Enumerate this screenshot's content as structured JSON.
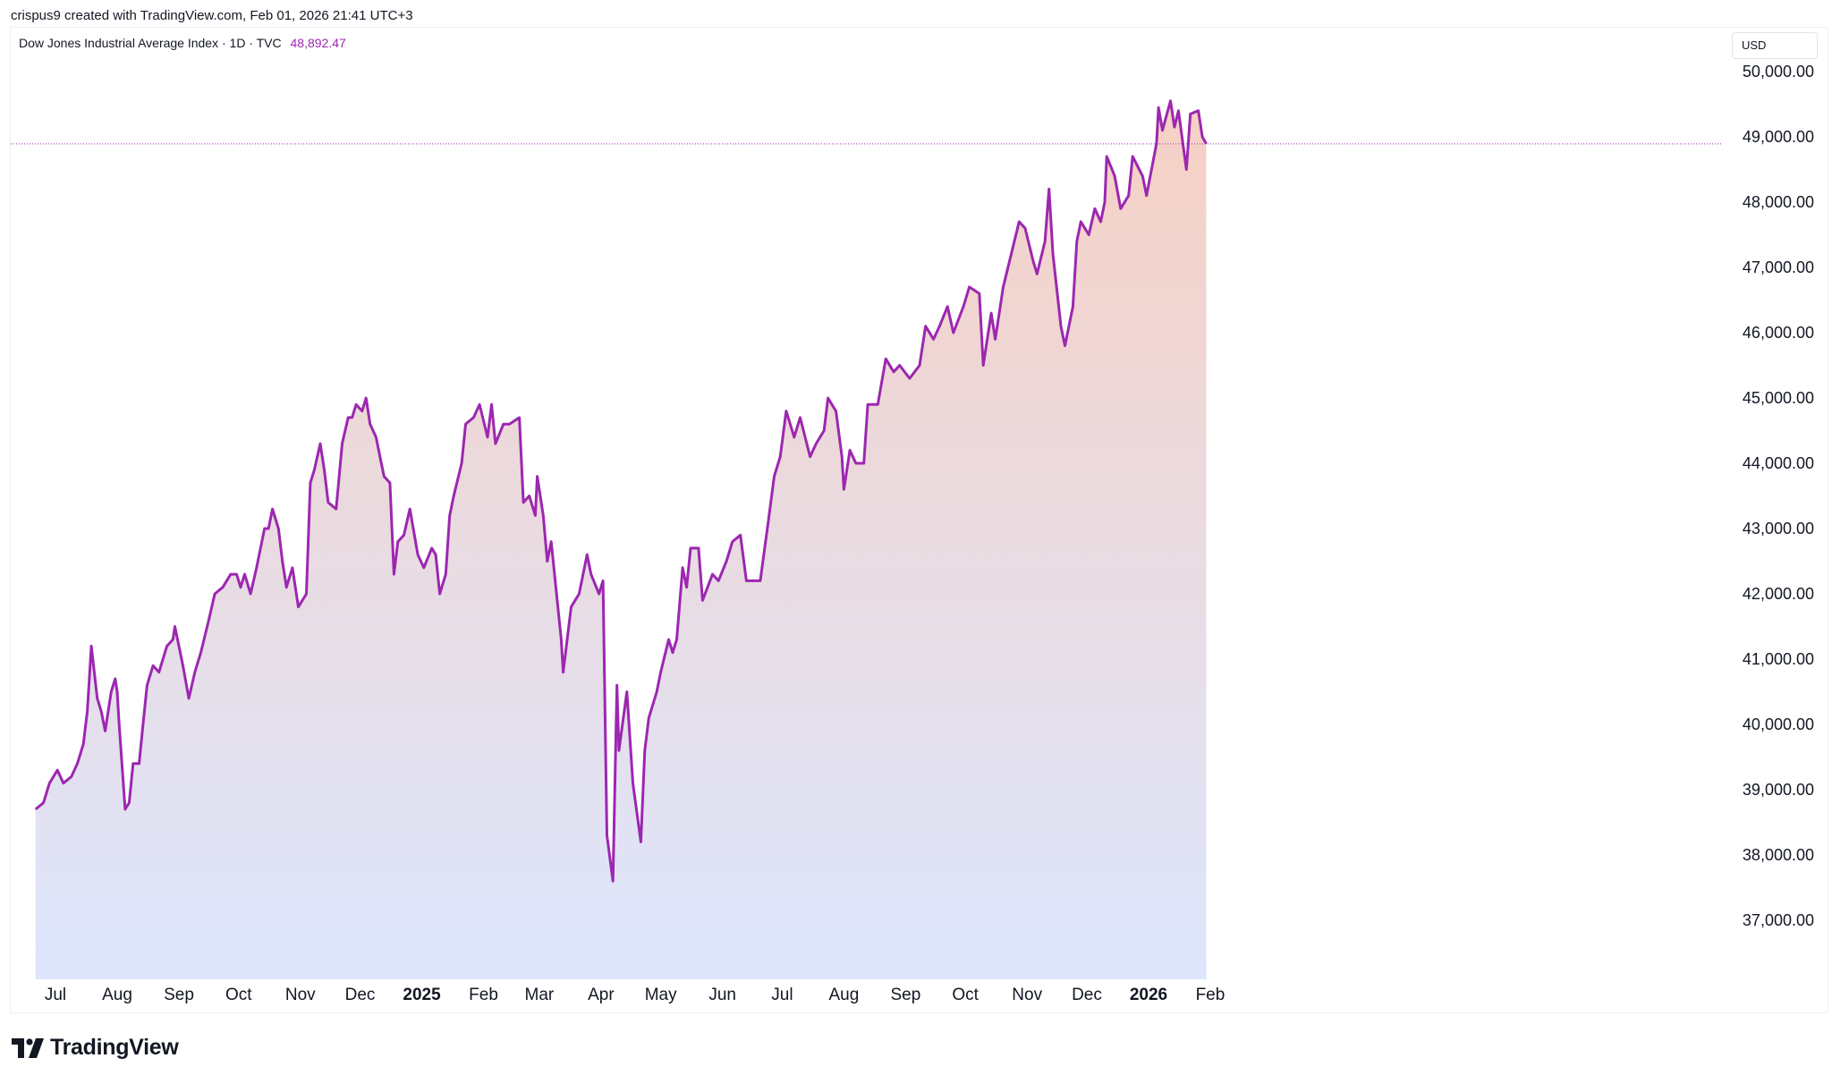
{
  "header": {
    "attribution": "crispus9 created with TradingView.com, Feb 01, 2026 21:41 UTC+3"
  },
  "legend": {
    "symbol": "Dow Jones Industrial Average Index · 1D · TVC",
    "last_price": "48,892.47"
  },
  "currency": "USD",
  "branding": {
    "logo_text": "TradingView"
  },
  "colors": {
    "line": "#9c27b0",
    "fill_top": "#f6d0c4",
    "fill_bottom": "#dde6fd",
    "price_line": "#9c27b0"
  },
  "chart_data": {
    "type": "area",
    "ylim": [
      36500,
      50500
    ],
    "y_ticks": [
      50000,
      49000,
      48000,
      47000,
      46000,
      45000,
      44000,
      43000,
      42000,
      41000,
      40000,
      39000,
      38000,
      37000
    ],
    "y_tick_labels": [
      "50,000.00",
      "49,000.00",
      "48,000.00",
      "47,000.00",
      "46,000.00",
      "45,000.00",
      "44,000.00",
      "43,000.00",
      "42,000.00",
      "41,000.00",
      "40,000.00",
      "39,000.00",
      "38,000.00",
      "37,000.00"
    ],
    "x_ticks": [
      {
        "label": "Jul",
        "date": "2024-07-01",
        "bold": false
      },
      {
        "label": "Aug",
        "date": "2024-08-01",
        "bold": false
      },
      {
        "label": "Sep",
        "date": "2024-09-01",
        "bold": false
      },
      {
        "label": "Oct",
        "date": "2024-10-01",
        "bold": false
      },
      {
        "label": "Nov",
        "date": "2024-11-01",
        "bold": false
      },
      {
        "label": "Dec",
        "date": "2024-12-01",
        "bold": false
      },
      {
        "label": "2025",
        "date": "2025-01-01",
        "bold": true
      },
      {
        "label": "Feb",
        "date": "2025-02-01",
        "bold": false
      },
      {
        "label": "Mar",
        "date": "2025-03-01",
        "bold": false
      },
      {
        "label": "Apr",
        "date": "2025-04-01",
        "bold": false
      },
      {
        "label": "May",
        "date": "2025-05-01",
        "bold": false
      },
      {
        "label": "Jun",
        "date": "2025-06-01",
        "bold": false
      },
      {
        "label": "Jul",
        "date": "2025-07-01",
        "bold": false
      },
      {
        "label": "Aug",
        "date": "2025-08-01",
        "bold": false
      },
      {
        "label": "Sep",
        "date": "2025-09-01",
        "bold": false
      },
      {
        "label": "Oct",
        "date": "2025-10-01",
        "bold": false
      },
      {
        "label": "Nov",
        "date": "2025-11-01",
        "bold": false
      },
      {
        "label": "Dec",
        "date": "2025-12-01",
        "bold": false
      },
      {
        "label": "2026",
        "date": "2026-01-01",
        "bold": true
      },
      {
        "label": "Feb",
        "date": "2026-02-01",
        "bold": false
      }
    ],
    "last_value": 48892.47,
    "series": [
      {
        "points": [
          {
            "x": "2024-06-21",
            "y": 38700
          },
          {
            "x": "2024-06-25",
            "y": 38800
          },
          {
            "x": "2024-06-28",
            "y": 39100
          },
          {
            "x": "2024-07-02",
            "y": 39300
          },
          {
            "x": "2024-07-05",
            "y": 39100
          },
          {
            "x": "2024-07-09",
            "y": 39200
          },
          {
            "x": "2024-07-12",
            "y": 39400
          },
          {
            "x": "2024-07-15",
            "y": 39700
          },
          {
            "x": "2024-07-17",
            "y": 40200
          },
          {
            "x": "2024-07-19",
            "y": 41200
          },
          {
            "x": "2024-07-22",
            "y": 40400
          },
          {
            "x": "2024-07-24",
            "y": 40200
          },
          {
            "x": "2024-07-26",
            "y": 39900
          },
          {
            "x": "2024-07-29",
            "y": 40500
          },
          {
            "x": "2024-07-31",
            "y": 40700
          },
          {
            "x": "2024-08-01",
            "y": 40500
          },
          {
            "x": "2024-08-02",
            "y": 40000
          },
          {
            "x": "2024-08-05",
            "y": 38700
          },
          {
            "x": "2024-08-07",
            "y": 38800
          },
          {
            "x": "2024-08-09",
            "y": 39400
          },
          {
            "x": "2024-08-12",
            "y": 39400
          },
          {
            "x": "2024-08-14",
            "y": 40000
          },
          {
            "x": "2024-08-16",
            "y": 40600
          },
          {
            "x": "2024-08-19",
            "y": 40900
          },
          {
            "x": "2024-08-22",
            "y": 40800
          },
          {
            "x": "2024-08-26",
            "y": 41200
          },
          {
            "x": "2024-08-29",
            "y": 41300
          },
          {
            "x": "2024-08-30",
            "y": 41500
          },
          {
            "x": "2024-09-03",
            "y": 40900
          },
          {
            "x": "2024-09-06",
            "y": 40400
          },
          {
            "x": "2024-09-09",
            "y": 40800
          },
          {
            "x": "2024-09-12",
            "y": 41100
          },
          {
            "x": "2024-09-16",
            "y": 41600
          },
          {
            "x": "2024-09-19",
            "y": 42000
          },
          {
            "x": "2024-09-23",
            "y": 42100
          },
          {
            "x": "2024-09-27",
            "y": 42300
          },
          {
            "x": "2024-09-30",
            "y": 42300
          },
          {
            "x": "2024-10-02",
            "y": 42100
          },
          {
            "x": "2024-10-04",
            "y": 42300
          },
          {
            "x": "2024-10-07",
            "y": 42000
          },
          {
            "x": "2024-10-10",
            "y": 42400
          },
          {
            "x": "2024-10-14",
            "y": 43000
          },
          {
            "x": "2024-10-16",
            "y": 43000
          },
          {
            "x": "2024-10-18",
            "y": 43300
          },
          {
            "x": "2024-10-21",
            "y": 43000
          },
          {
            "x": "2024-10-23",
            "y": 42500
          },
          {
            "x": "2024-10-25",
            "y": 42100
          },
          {
            "x": "2024-10-28",
            "y": 42400
          },
          {
            "x": "2024-10-31",
            "y": 41800
          },
          {
            "x": "2024-11-04",
            "y": 42000
          },
          {
            "x": "2024-11-06",
            "y": 43700
          },
          {
            "x": "2024-11-08",
            "y": 43900
          },
          {
            "x": "2024-11-11",
            "y": 44300
          },
          {
            "x": "2024-11-13",
            "y": 43900
          },
          {
            "x": "2024-11-15",
            "y": 43400
          },
          {
            "x": "2024-11-19",
            "y": 43300
          },
          {
            "x": "2024-11-22",
            "y": 44300
          },
          {
            "x": "2024-11-25",
            "y": 44700
          },
          {
            "x": "2024-11-27",
            "y": 44700
          },
          {
            "x": "2024-11-29",
            "y": 44900
          },
          {
            "x": "2024-12-02",
            "y": 44800
          },
          {
            "x": "2024-12-04",
            "y": 45000
          },
          {
            "x": "2024-12-06",
            "y": 44600
          },
          {
            "x": "2024-12-09",
            "y": 44400
          },
          {
            "x": "2024-12-11",
            "y": 44100
          },
          {
            "x": "2024-12-13",
            "y": 43800
          },
          {
            "x": "2024-12-16",
            "y": 43700
          },
          {
            "x": "2024-12-18",
            "y": 42300
          },
          {
            "x": "2024-12-20",
            "y": 42800
          },
          {
            "x": "2024-12-23",
            "y": 42900
          },
          {
            "x": "2024-12-26",
            "y": 43300
          },
          {
            "x": "2024-12-30",
            "y": 42600
          },
          {
            "x": "2025-01-02",
            "y": 42400
          },
          {
            "x": "2025-01-06",
            "y": 42700
          },
          {
            "x": "2025-01-08",
            "y": 42600
          },
          {
            "x": "2025-01-10",
            "y": 42000
          },
          {
            "x": "2025-01-13",
            "y": 42300
          },
          {
            "x": "2025-01-15",
            "y": 43200
          },
          {
            "x": "2025-01-17",
            "y": 43500
          },
          {
            "x": "2025-01-21",
            "y": 44000
          },
          {
            "x": "2025-01-23",
            "y": 44600
          },
          {
            "x": "2025-01-27",
            "y": 44700
          },
          {
            "x": "2025-01-30",
            "y": 44900
          },
          {
            "x": "2025-02-03",
            "y": 44400
          },
          {
            "x": "2025-02-05",
            "y": 44900
          },
          {
            "x": "2025-02-07",
            "y": 44300
          },
          {
            "x": "2025-02-11",
            "y": 44600
          },
          {
            "x": "2025-02-14",
            "y": 44600
          },
          {
            "x": "2025-02-19",
            "y": 44700
          },
          {
            "x": "2025-02-21",
            "y": 43400
          },
          {
            "x": "2025-02-24",
            "y": 43500
          },
          {
            "x": "2025-02-27",
            "y": 43200
          },
          {
            "x": "2025-02-28",
            "y": 43800
          },
          {
            "x": "2025-03-03",
            "y": 43200
          },
          {
            "x": "2025-03-05",
            "y": 42500
          },
          {
            "x": "2025-03-07",
            "y": 42800
          },
          {
            "x": "2025-03-10",
            "y": 41900
          },
          {
            "x": "2025-03-12",
            "y": 41300
          },
          {
            "x": "2025-03-13",
            "y": 40800
          },
          {
            "x": "2025-03-17",
            "y": 41800
          },
          {
            "x": "2025-03-19",
            "y": 41900
          },
          {
            "x": "2025-03-21",
            "y": 42000
          },
          {
            "x": "2025-03-25",
            "y": 42600
          },
          {
            "x": "2025-03-27",
            "y": 42300
          },
          {
            "x": "2025-03-31",
            "y": 42000
          },
          {
            "x": "2025-04-02",
            "y": 42200
          },
          {
            "x": "2025-04-04",
            "y": 38300
          },
          {
            "x": "2025-04-07",
            "y": 37600
          },
          {
            "x": "2025-04-09",
            "y": 40600
          },
          {
            "x": "2025-04-10",
            "y": 39600
          },
          {
            "x": "2025-04-14",
            "y": 40500
          },
          {
            "x": "2025-04-17",
            "y": 39100
          },
          {
            "x": "2025-04-21",
            "y": 38200
          },
          {
            "x": "2025-04-23",
            "y": 39600
          },
          {
            "x": "2025-04-25",
            "y": 40100
          },
          {
            "x": "2025-04-29",
            "y": 40500
          },
          {
            "x": "2025-05-01",
            "y": 40800
          },
          {
            "x": "2025-05-05",
            "y": 41300
          },
          {
            "x": "2025-05-07",
            "y": 41100
          },
          {
            "x": "2025-05-09",
            "y": 41300
          },
          {
            "x": "2025-05-12",
            "y": 42400
          },
          {
            "x": "2025-05-14",
            "y": 42100
          },
          {
            "x": "2025-05-16",
            "y": 42700
          },
          {
            "x": "2025-05-20",
            "y": 42700
          },
          {
            "x": "2025-05-22",
            "y": 41900
          },
          {
            "x": "2025-05-27",
            "y": 42300
          },
          {
            "x": "2025-05-30",
            "y": 42200
          },
          {
            "x": "2025-06-03",
            "y": 42500
          },
          {
            "x": "2025-06-06",
            "y": 42800
          },
          {
            "x": "2025-06-10",
            "y": 42900
          },
          {
            "x": "2025-06-13",
            "y": 42200
          },
          {
            "x": "2025-06-17",
            "y": 42200
          },
          {
            "x": "2025-06-20",
            "y": 42200
          },
          {
            "x": "2025-06-24",
            "y": 43100
          },
          {
            "x": "2025-06-27",
            "y": 43800
          },
          {
            "x": "2025-06-30",
            "y": 44100
          },
          {
            "x": "2025-07-03",
            "y": 44800
          },
          {
            "x": "2025-07-07",
            "y": 44400
          },
          {
            "x": "2025-07-10",
            "y": 44700
          },
          {
            "x": "2025-07-15",
            "y": 44100
          },
          {
            "x": "2025-07-18",
            "y": 44300
          },
          {
            "x": "2025-07-22",
            "y": 44500
          },
          {
            "x": "2025-07-24",
            "y": 45000
          },
          {
            "x": "2025-07-28",
            "y": 44800
          },
          {
            "x": "2025-07-31",
            "y": 44100
          },
          {
            "x": "2025-08-01",
            "y": 43600
          },
          {
            "x": "2025-08-04",
            "y": 44200
          },
          {
            "x": "2025-08-07",
            "y": 44000
          },
          {
            "x": "2025-08-11",
            "y": 44000
          },
          {
            "x": "2025-08-13",
            "y": 44900
          },
          {
            "x": "2025-08-18",
            "y": 44900
          },
          {
            "x": "2025-08-22",
            "y": 45600
          },
          {
            "x": "2025-08-26",
            "y": 45400
          },
          {
            "x": "2025-08-29",
            "y": 45500
          },
          {
            "x": "2025-09-03",
            "y": 45300
          },
          {
            "x": "2025-09-08",
            "y": 45500
          },
          {
            "x": "2025-09-11",
            "y": 46100
          },
          {
            "x": "2025-09-15",
            "y": 45900
          },
          {
            "x": "2025-09-18",
            "y": 46100
          },
          {
            "x": "2025-09-22",
            "y": 46400
          },
          {
            "x": "2025-09-25",
            "y": 46000
          },
          {
            "x": "2025-09-30",
            "y": 46400
          },
          {
            "x": "2025-10-03",
            "y": 46700
          },
          {
            "x": "2025-10-08",
            "y": 46600
          },
          {
            "x": "2025-10-10",
            "y": 45500
          },
          {
            "x": "2025-10-14",
            "y": 46300
          },
          {
            "x": "2025-10-16",
            "y": 45900
          },
          {
            "x": "2025-10-20",
            "y": 46700
          },
          {
            "x": "2025-10-24",
            "y": 47200
          },
          {
            "x": "2025-10-28",
            "y": 47700
          },
          {
            "x": "2025-10-31",
            "y": 47600
          },
          {
            "x": "2025-11-04",
            "y": 47100
          },
          {
            "x": "2025-11-06",
            "y": 46900
          },
          {
            "x": "2025-11-10",
            "y": 47400
          },
          {
            "x": "2025-11-12",
            "y": 48200
          },
          {
            "x": "2025-11-14",
            "y": 47200
          },
          {
            "x": "2025-11-18",
            "y": 46100
          },
          {
            "x": "2025-11-20",
            "y": 45800
          },
          {
            "x": "2025-11-24",
            "y": 46400
          },
          {
            "x": "2025-11-26",
            "y": 47400
          },
          {
            "x": "2025-11-28",
            "y": 47700
          },
          {
            "x": "2025-12-02",
            "y": 47500
          },
          {
            "x": "2025-12-05",
            "y": 47900
          },
          {
            "x": "2025-12-08",
            "y": 47700
          },
          {
            "x": "2025-12-10",
            "y": 48000
          },
          {
            "x": "2025-12-11",
            "y": 48700
          },
          {
            "x": "2025-12-15",
            "y": 48400
          },
          {
            "x": "2025-12-18",
            "y": 47900
          },
          {
            "x": "2025-12-22",
            "y": 48100
          },
          {
            "x": "2025-12-24",
            "y": 48700
          },
          {
            "x": "2025-12-29",
            "y": 48400
          },
          {
            "x": "2025-12-31",
            "y": 48100
          },
          {
            "x": "2026-01-05",
            "y": 48900
          },
          {
            "x": "2026-01-06",
            "y": 49450
          },
          {
            "x": "2026-01-08",
            "y": 49100
          },
          {
            "x": "2026-01-12",
            "y": 49550
          },
          {
            "x": "2026-01-14",
            "y": 49150
          },
          {
            "x": "2026-01-16",
            "y": 49400
          },
          {
            "x": "2026-01-20",
            "y": 48500
          },
          {
            "x": "2026-01-22",
            "y": 49350
          },
          {
            "x": "2026-01-26",
            "y": 49400
          },
          {
            "x": "2026-01-28",
            "y": 49000
          },
          {
            "x": "2026-01-30",
            "y": 48892.47
          }
        ]
      }
    ]
  }
}
